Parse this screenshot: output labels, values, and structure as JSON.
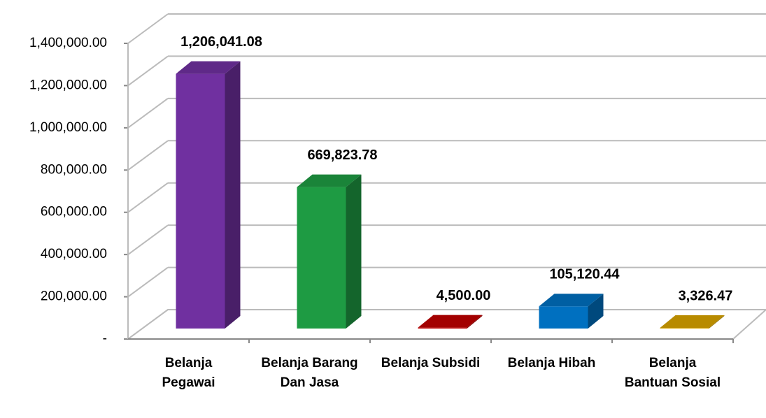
{
  "chart_data": {
    "type": "bar3d",
    "categories": [
      "Belanja Pegawai",
      "Belanja Barang Dan Jasa",
      "Belanja Subsidi",
      "Belanja Hibah",
      "Belanja Bantuan Sosial"
    ],
    "values": [
      1206041.08,
      669823.78,
      4500.0,
      105120.44,
      3326.47
    ],
    "value_labels": [
      "1,206,041.08",
      "669,823.78",
      "4,500.00",
      "105,120.44",
      "3,326.47"
    ],
    "colors": [
      "#7030a0",
      "#1e9b43",
      "#c00000",
      "#0070c0",
      "#d9a400"
    ],
    "ylim": [
      0,
      1400000
    ],
    "yticks": [
      {
        "value": 0,
        "label": "-"
      },
      {
        "value": 200000,
        "label": "200,000.00"
      },
      {
        "value": 400000,
        "label": "400,000.00"
      },
      {
        "value": 600000,
        "label": "600,000.00"
      },
      {
        "value": 800000,
        "label": "800,000.00"
      },
      {
        "value": 1000000,
        "label": "1,000,000.00"
      },
      {
        "value": 1200000,
        "label": "1,200,000.00"
      },
      {
        "value": 1400000,
        "label": "1,400,000.00"
      }
    ],
    "grid": true
  }
}
